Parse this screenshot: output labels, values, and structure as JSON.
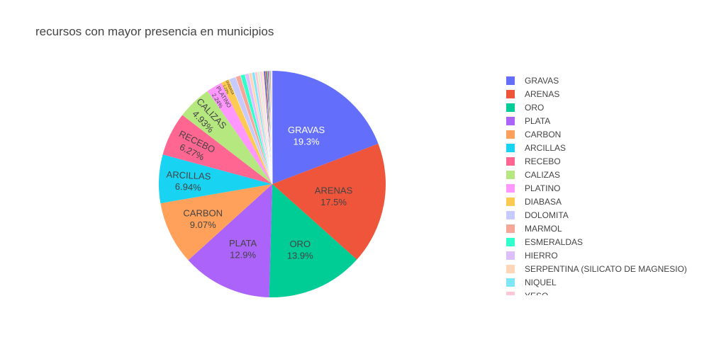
{
  "title": "recursos con mayor presencia en municipios",
  "chart_data": {
    "type": "pie",
    "title": "recursos con mayor presencia en municipios",
    "legend_position": "right",
    "sort": "descending",
    "direction": "clockwise",
    "start_angle_deg": 0,
    "slices": [
      {
        "label": "GRAVAS",
        "percent": 19.3,
        "percent_text": "19.3%",
        "color": "#636EFA",
        "text_color": "#ffffff"
      },
      {
        "label": "ARENAS",
        "percent": 17.5,
        "percent_text": "17.5%",
        "color": "#EF553B",
        "text_color": "#444444"
      },
      {
        "label": "ORO",
        "percent": 13.9,
        "percent_text": "13.9%",
        "color": "#00CC96",
        "text_color": "#444444"
      },
      {
        "label": "PLATA",
        "percent": 12.9,
        "percent_text": "12.9%",
        "color": "#AB63FA",
        "text_color": "#444444"
      },
      {
        "label": "CARBON",
        "percent": 9.07,
        "percent_text": "9.07%",
        "color": "#FFA15A",
        "text_color": "#444444"
      },
      {
        "label": "ARCILLAS",
        "percent": 6.94,
        "percent_text": "6.94%",
        "color": "#19D3F3",
        "text_color": "#444444"
      },
      {
        "label": "RECEBO",
        "percent": 6.27,
        "percent_text": "6.27%",
        "color": "#FF6692",
        "text_color": "#444444"
      },
      {
        "label": "CALIZAS",
        "percent": 4.93,
        "percent_text": "4.93%",
        "color": "#B6E880",
        "text_color": "#444444"
      },
      {
        "label": "PLATINO",
        "percent": 2.24,
        "percent_text": "2.24%",
        "color": "#FF97FF",
        "text_color": "#444444"
      },
      {
        "label": "DIABASA",
        "percent": 1.22,
        "percent_text": "1.22%",
        "color": "#FECB52",
        "text_color": "#444444"
      },
      {
        "label": "DOLOMITA",
        "percent": 0.99,
        "percent_text": "",
        "color": "#C6CAFD",
        "text_color": "#444444"
      },
      {
        "label": "MARMOL",
        "percent": 0.71,
        "percent_text": "",
        "color": "#F7A799",
        "text_color": "#444444"
      },
      {
        "label": "ESMERALDAS",
        "percent": 0.65,
        "percent_text": "",
        "color": "#33FFCC",
        "text_color": "#444444"
      },
      {
        "label": "HIERRO",
        "percent": 0.55,
        "percent_text": "",
        "color": "#DDBEFF",
        "text_color": "#444444"
      },
      {
        "label": "SERPENTINA (SILICATO DE MAGNESIO)",
        "percent": 0.45,
        "percent_text": "",
        "color": "#FFD6BA",
        "text_color": "#444444"
      },
      {
        "label": "NIQUEL",
        "percent": 0.42,
        "percent_text": "",
        "color": "#7FE6F7",
        "text_color": "#444444"
      },
      {
        "label": "YESO",
        "percent": 0.38,
        "percent_text": "",
        "color": "#FFC8D6",
        "text_color": "#444444"
      },
      {
        "percent": 0.34,
        "color": "#DAF2C5"
      },
      {
        "percent": 0.3,
        "color": "#FFCBFF"
      },
      {
        "percent": 0.26,
        "color": "#FFE5A8"
      },
      {
        "percent": 0.22,
        "color": "#3D4AE0"
      },
      {
        "percent": 0.19,
        "color": "#C23A24"
      },
      {
        "percent": 0.16,
        "color": "#008F69"
      },
      {
        "percent": 0.14,
        "color": "#7A2FD1"
      },
      {
        "percent": 0.12,
        "color": "#E0722A"
      },
      {
        "percent": 0.1,
        "color": "#0B9AB8"
      },
      {
        "percent": 0.08,
        "color": "#000000"
      },
      {
        "percent": 0.07,
        "color": "#D92E5F"
      },
      {
        "percent": 0.06,
        "color": "#7DB34C"
      },
      {
        "percent": 0.06,
        "color": "#D24ED2"
      }
    ]
  }
}
